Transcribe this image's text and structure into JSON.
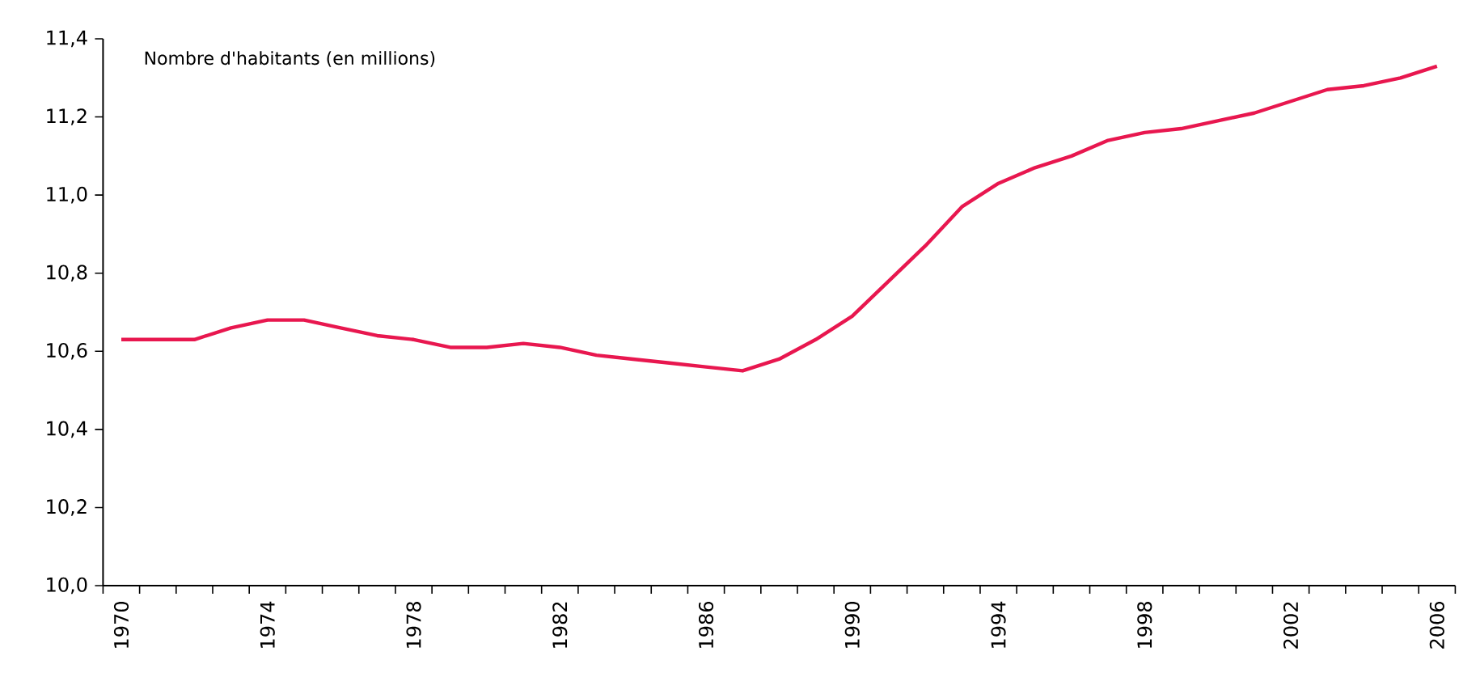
{
  "chart_data": {
    "type": "line",
    "ylabel": "Nombre d'habitants (en millions)",
    "categories": [
      "1970",
      null,
      null,
      null,
      "1974",
      null,
      null,
      null,
      "1978",
      null,
      null,
      null,
      "1982",
      null,
      null,
      null,
      "1986",
      null,
      null,
      null,
      "1990",
      null,
      null,
      null,
      "1994",
      null,
      null,
      null,
      "1998",
      null,
      null,
      null,
      "2002",
      null,
      null,
      null,
      "2006"
    ],
    "series": [
      {
        "color": "#e8174f",
        "values": [
          10.63,
          10.63,
          10.63,
          10.66,
          10.68,
          10.68,
          10.66,
          10.64,
          10.63,
          10.61,
          10.61,
          10.62,
          10.61,
          10.59,
          10.58,
          10.57,
          10.56,
          10.55,
          10.58,
          10.63,
          10.69,
          10.78,
          10.87,
          10.97,
          11.03,
          11.07,
          11.1,
          11.14,
          11.16,
          11.17,
          11.19,
          11.21,
          11.24,
          11.27,
          11.28,
          11.3,
          11.33
        ]
      }
    ],
    "ylim": [
      10.0,
      11.4
    ],
    "yticks": [
      {
        "value": 10.0,
        "label": "10,0"
      },
      {
        "value": 10.2,
        "label": "10,2"
      },
      {
        "value": 10.4,
        "label": "10,4"
      },
      {
        "value": 10.6,
        "label": "10,6"
      },
      {
        "value": 10.8,
        "label": "10,8"
      },
      {
        "value": 11.0,
        "label": "11,0"
      },
      {
        "value": 11.2,
        "label": "11,2"
      },
      {
        "value": 11.4,
        "label": "11,4"
      }
    ]
  }
}
